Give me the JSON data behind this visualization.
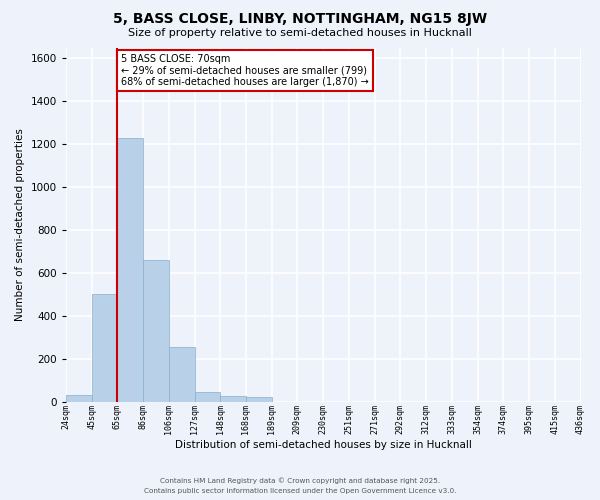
{
  "title": "5, BASS CLOSE, LINBY, NOTTINGHAM, NG15 8JW",
  "subtitle": "Size of property relative to semi-detached houses in Hucknall",
  "xlabel": "Distribution of semi-detached houses by size in Hucknall",
  "ylabel": "Number of semi-detached properties",
  "bar_values": [
    30,
    500,
    1230,
    660,
    255,
    45,
    25,
    20,
    0,
    0,
    0,
    0,
    0,
    0,
    0,
    0,
    0,
    0,
    0,
    0
  ],
  "bin_labels": [
    "24sqm",
    "45sqm",
    "65sqm",
    "86sqm",
    "106sqm",
    "127sqm",
    "148sqm",
    "168sqm",
    "189sqm",
    "209sqm",
    "230sqm",
    "251sqm",
    "271sqm",
    "292sqm",
    "312sqm",
    "333sqm",
    "354sqm",
    "374sqm",
    "395sqm",
    "415sqm",
    "436sqm"
  ],
  "bar_color": "#b8d0e8",
  "bar_edge_color": "#8ab0cc",
  "vline_x": 2,
  "vline_color": "#cc0000",
  "annotation_title": "5 BASS CLOSE: 70sqm",
  "annotation_line1": "← 29% of semi-detached houses are smaller (799)",
  "annotation_line2": "68% of semi-detached houses are larger (1,870) →",
  "annotation_box_color": "#ffffff",
  "annotation_box_edge": "#cc0000",
  "ylim": [
    0,
    1650
  ],
  "yticks": [
    0,
    200,
    400,
    600,
    800,
    1000,
    1200,
    1400,
    1600
  ],
  "background_color": "#eef2fa",
  "grid_color": "#ffffff",
  "footer_line1": "Contains HM Land Registry data © Crown copyright and database right 2025.",
  "footer_line2": "Contains public sector information licensed under the Open Government Licence v3.0."
}
